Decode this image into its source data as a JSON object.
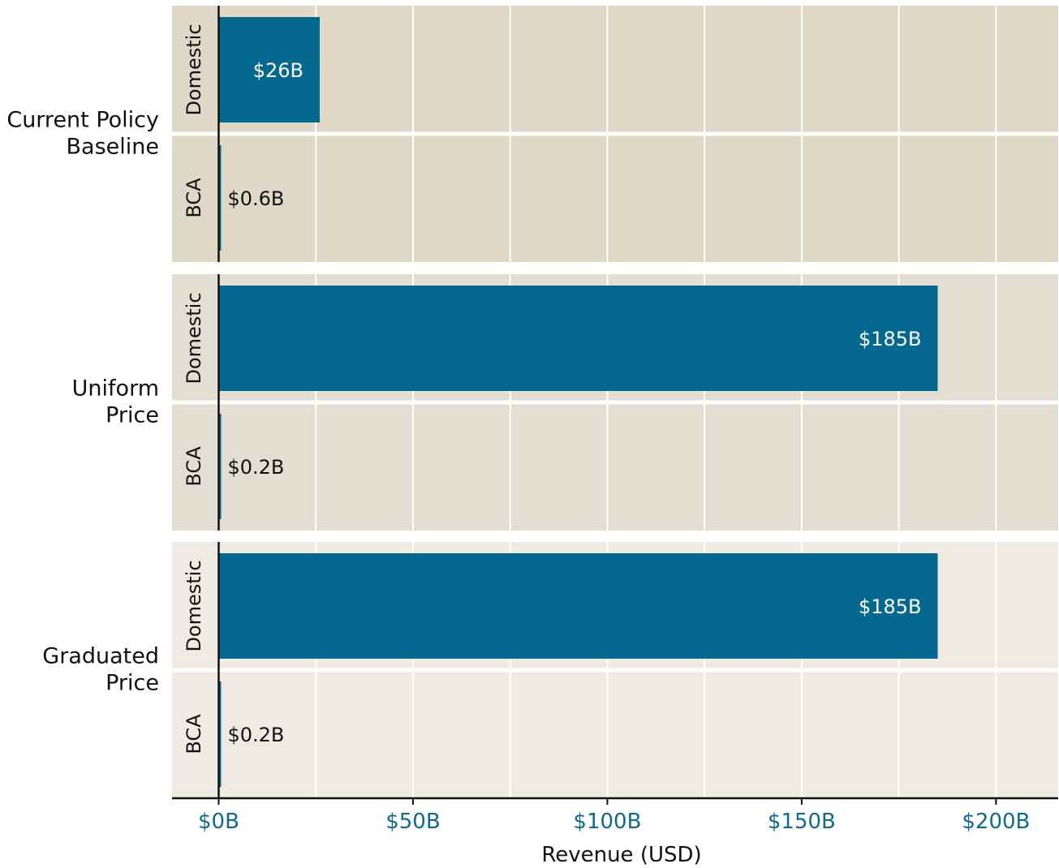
{
  "chart_data": {
    "type": "bar",
    "orientation": "horizontal",
    "facet_by": "policy",
    "xlabel": "Revenue (USD)",
    "xlim": [
      -12,
      216
    ],
    "x_ticks": [
      0,
      50,
      100,
      150,
      200
    ],
    "x_tick_labels": [
      "$0B",
      "$50B",
      "$100B",
      "$150B",
      "$200B"
    ],
    "grid": true,
    "colors": {
      "bar": "#05688f",
      "tick_label": "#0f6a90",
      "panel_backgrounds": [
        "#e0d8c6",
        "#e3ded2",
        "#efebe3"
      ],
      "gridline": "#ffffff",
      "label_inside": "#ffffff",
      "label_outside": "#111111"
    },
    "panels": [
      {
        "group_label_lines": [
          "Current Policy",
          "Baseline"
        ],
        "bars": [
          {
            "category": "Domestic",
            "value": 26,
            "label": "$26B",
            "label_inside": true
          },
          {
            "category": "BCA",
            "value": 0.6,
            "label": "$0.6B",
            "label_inside": false
          }
        ]
      },
      {
        "group_label_lines": [
          "Uniform",
          "Price"
        ],
        "bars": [
          {
            "category": "Domestic",
            "value": 185,
            "label": "$185B",
            "label_inside": true
          },
          {
            "category": "BCA",
            "value": 0.2,
            "label": "$0.2B",
            "label_inside": false
          }
        ]
      },
      {
        "group_label_lines": [
          "Graduated",
          "Price"
        ],
        "bars": [
          {
            "category": "Domestic",
            "value": 185,
            "label": "$185B",
            "label_inside": true
          },
          {
            "category": "BCA",
            "value": 0.2,
            "label": "$0.2B",
            "label_inside": false
          }
        ]
      }
    ]
  }
}
